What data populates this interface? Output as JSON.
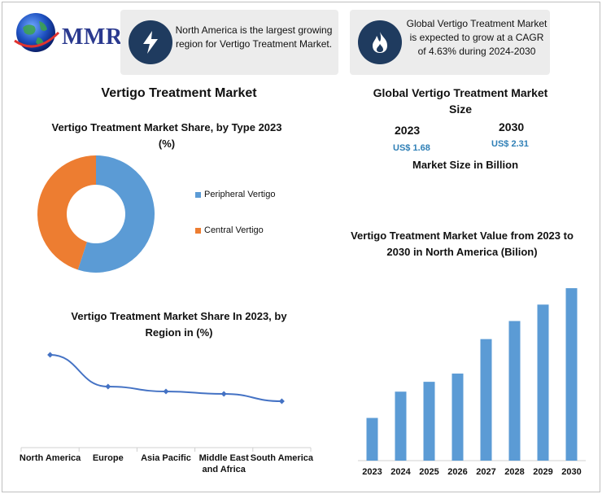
{
  "brand": {
    "logo_text": "MMR"
  },
  "cards": [
    {
      "icon": "lightning-icon",
      "text": "North America is the largest growing region for Vertigo Treatment Market."
    },
    {
      "icon": "flame-icon",
      "text": "Global Vertigo Treatment Market is expected to grow at a CAGR of 4.63% during 2024-2030"
    }
  ],
  "main_title": "Vertigo Treatment Market",
  "market_size": {
    "title": "Global Vertigo Treatment Market Size",
    "year_2023": "2023",
    "value_2023": "US$ 1.68",
    "year_2030": "2030",
    "value_2030": "US$ 2.31",
    "caption": "Market Size in Billion"
  },
  "colors": {
    "accent_blue": "#5b9bd5",
    "accent_orange": "#ed7d31",
    "icon_bg": "#1f3b5f",
    "value_text": "#2e7fb6"
  },
  "chart_data": [
    {
      "type": "pie",
      "title": "Vertigo Treatment Market Share, by Type 2023 (%)",
      "donut": true,
      "categories": [
        "Peripheral Vertigo",
        "Central Vertigo"
      ],
      "values": [
        55,
        45
      ],
      "colors": [
        "#5b9bd5",
        "#ed7d31"
      ],
      "legend": "right"
    },
    {
      "type": "line",
      "title": "Vertigo Treatment Market Share In 2023, by Region in (%)",
      "categories": [
        "North America",
        "Europe",
        "Asia Pacific",
        "Middle East and Africa",
        "South America"
      ],
      "values": [
        38,
        25,
        23,
        22,
        19
      ],
      "ylim": [
        0,
        50
      ],
      "grid": false,
      "color": "#4472c4"
    },
    {
      "type": "bar",
      "title": "Vertigo Treatment Market Value from 2023 to 2030 in North America (Bilion)",
      "categories": [
        "2023",
        "2024",
        "2025",
        "2026",
        "2027",
        "2028",
        "2029",
        "2030"
      ],
      "values": [
        0.26,
        0.42,
        0.48,
        0.53,
        0.74,
        0.85,
        0.95,
        1.05
      ],
      "ylim": [
        0,
        1.1
      ],
      "grid": false,
      "color": "#5b9bd5"
    }
  ]
}
